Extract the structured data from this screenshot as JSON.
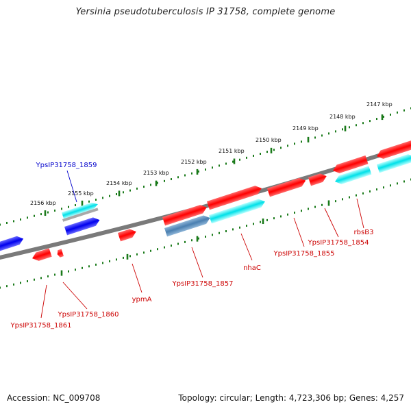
{
  "map": {
    "title": "Yersinia pseudotuberculosis IP 31758, complete genome",
    "accession": "Accession: NC_009708",
    "topology": "Topology: circular; Length: 4,723,306 bp; Genes: 4,257"
  },
  "colors": {
    "backbone": "#7a7a7a",
    "tick": "#1a7a1a",
    "gene_red": "#ff0000",
    "gene_blue": "#0000ee",
    "gene_cyan": "#00e0e8",
    "gene_steel": "#4a7fb0",
    "label_red": "#cc0000",
    "label_blue": "#0000cc"
  },
  "kbp_labels": [
    "2147 kbp",
    "2148 kbp",
    "2149 kbp",
    "2150 kbp",
    "2151 kbp",
    "2152 kbp",
    "2153 kbp",
    "2154 kbp",
    "2155 kbp",
    "2156 kbp"
  ],
  "gene_labels": [
    {
      "text": "YpsIP31758_1859",
      "color": "blue"
    },
    {
      "text": "rbsB3",
      "color": "red"
    },
    {
      "text": "YpsIP31758_1854",
      "color": "red"
    },
    {
      "text": "YpsIP31758_1855",
      "color": "red"
    },
    {
      "text": "nhaC",
      "color": "red"
    },
    {
      "text": "YpsIP31758_1857",
      "color": "red"
    },
    {
      "text": "ypmA",
      "color": "red"
    },
    {
      "text": "YpsIP31758_1860",
      "color": "red"
    },
    {
      "text": "YpsIP31758_1861",
      "color": "red"
    }
  ]
}
